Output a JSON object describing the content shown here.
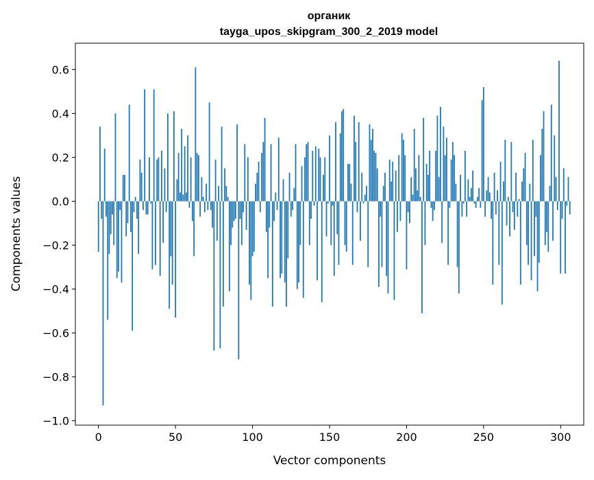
{
  "chart_data": {
    "type": "bar",
    "title_line1": "органик",
    "title_line2": "tayga_upos_skipgram_300_2_2019 model",
    "xlabel": "Vector components",
    "ylabel": "Components values",
    "xlim": [
      -15,
      315
    ],
    "ylim": [
      -1.02,
      0.72
    ],
    "xticks": [
      {
        "value": 0,
        "label": "0"
      },
      {
        "value": 50,
        "label": "50"
      },
      {
        "value": 100,
        "label": "100"
      },
      {
        "value": 150,
        "label": "150"
      },
      {
        "value": 200,
        "label": "200"
      },
      {
        "value": 250,
        "label": "250"
      },
      {
        "value": 300,
        "label": "300"
      }
    ],
    "yticks": [
      {
        "value": 0.6,
        "label": "0.6"
      },
      {
        "value": 0.4,
        "label": "0.4"
      },
      {
        "value": 0.2,
        "label": "0.2"
      },
      {
        "value": 0.0,
        "label": "0.0"
      },
      {
        "value": -0.2,
        "label": "−0.2"
      },
      {
        "value": -0.4,
        "label": "−0.4"
      },
      {
        "value": -0.6,
        "label": "−0.6"
      },
      {
        "value": -0.8,
        "label": "−0.8"
      },
      {
        "value": -1.0,
        "label": "−1.0"
      }
    ],
    "bar_color": "#1f77b4",
    "grid": false,
    "values": [
      -0.23,
      0.34,
      -0.08,
      -0.93,
      0.24,
      -0.07,
      -0.54,
      -0.24,
      -0.15,
      -0.06,
      -0.2,
      0.4,
      -0.35,
      -0.32,
      -0.04,
      -0.37,
      0.12,
      0.12,
      -0.16,
      -0.1,
      0.44,
      -0.14,
      -0.59,
      -0.05,
      0.02,
      -0.08,
      -0.24,
      0.19,
      0.13,
      -0.04,
      0.51,
      -0.06,
      -0.06,
      0.2,
      -0.01,
      -0.31,
      0.51,
      -0.29,
      0.19,
      0.2,
      -0.34,
      0.23,
      -0.19,
      0.15,
      -0.05,
      0.4,
      -0.49,
      -0.25,
      -0.38,
      0.41,
      -0.53,
      0.1,
      0.22,
      0.04,
      0.33,
      0.03,
      0.25,
      0.04,
      0.3,
      -0.03,
      0.2,
      -0.09,
      -0.25,
      0.61,
      0.22,
      0.21,
      -0.07,
      0.11,
      0.02,
      -0.05,
      0.08,
      -0.04,
      0.45,
      -0.04,
      -0.12,
      -0.68,
      0.19,
      -0.18,
      0.07,
      -0.67,
      0.34,
      -0.48,
      0.15,
      0.07,
      0.02,
      -0.41,
      -0.2,
      -0.12,
      -0.09,
      -0.08,
      0.35,
      -0.72,
      -0.08,
      -0.2,
      -0.05,
      0.26,
      -0.13,
      0.2,
      -0.38,
      -0.45,
      -0.25,
      -0.23,
      0.08,
      0.13,
      0.18,
      -0.05,
      0.22,
      0.27,
      0.38,
      -0.14,
      -0.35,
      -0.12,
      0.26,
      -0.48,
      -0.09,
      0.04,
      -0.04,
      0.29,
      -0.35,
      -0.33,
      0.1,
      -0.37,
      -0.48,
      -0.26,
      0.13,
      -0.07,
      -0.04,
      0.06,
      0.26,
      -0.4,
      -0.37,
      -0.2,
      0.16,
      -0.44,
      0.2,
      0.26,
      0.27,
      -0.2,
      -0.08,
      0.23,
      -0.02,
      0.25,
      -0.36,
      0.24,
      0.2,
      -0.46,
      0.12,
      0.2,
      -0.16,
      -0.01,
      0.3,
      -0.2,
      -0.02,
      -0.34,
      0.36,
      -0.15,
      -0.29,
      0.31,
      0.41,
      0.42,
      -0.2,
      -0.23,
      0.17,
      0.17,
      0.08,
      -0.29,
      0.39,
      0.27,
      -0.05,
      0.36,
      -0.18,
      0.13,
      -0.01,
      0.03,
      0.07,
      -0.3,
      0.35,
      0.28,
      0.33,
      0.23,
      0.22,
      0.15,
      -0.39,
      -0.07,
      -0.3,
      0.07,
      0.13,
      -0.34,
      -0.42,
      0.19,
      0.09,
      0.18,
      -0.45,
      0.14,
      -0.14,
      0.21,
      -0.09,
      0.31,
      0.28,
      0.21,
      -0.31,
      -0.05,
      -0.1,
      0.11,
      0.03,
      0.33,
      0.15,
      0.05,
      0.21,
      0.02,
      -0.51,
      0.38,
      -0.2,
      0.17,
      0.12,
      0.23,
      -0.03,
      -0.09,
      -0.04,
      0.23,
      0.39,
      0.11,
      0.43,
      -0.19,
      0.34,
      0.21,
      0.29,
      -0.29,
      -0.03,
      0.19,
      0.27,
      0.21,
      0.08,
      -0.3,
      -0.42,
      0.12,
      -0.07,
      -0.01,
      0.23,
      -0.07,
      0.1,
      0.02,
      0.06,
      0.14,
      -0.01,
      -0.03,
      0.02,
      0.06,
      -0.03,
      0.46,
      0.52,
      -0.07,
      0.05,
      0.11,
      0.04,
      -0.08,
      -0.38,
      0.13,
      -0.06,
      0.05,
      -0.29,
      0.18,
      -0.47,
      0.09,
      0.28,
      -0.11,
      0.02,
      -0.16,
      0.27,
      -0.05,
      -0.13,
      0.13,
      -0.07,
      0.01,
      -0.38,
      0.09,
      0.15,
      0.22,
      -0.2,
      -0.29,
      0.08,
      -0.36,
      0.28,
      -0.25,
      -0.07,
      -0.41,
      -0.28,
      0.21,
      0.33,
      0.41,
      -0.2,
      -0.14,
      -0.23,
      0.07,
      0.44,
      -0.18,
      0.3,
      0.11,
      -0.04,
      0.64,
      -0.33,
      -0.08,
      0.15,
      -0.33,
      -0.02,
      0.11,
      -0.06
    ]
  }
}
